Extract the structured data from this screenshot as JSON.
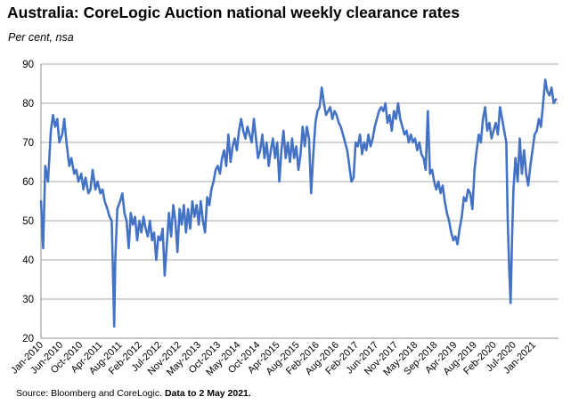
{
  "chart_data": {
    "type": "line",
    "title": "Australia: CoreLogic Auction national weekly clearance rates",
    "subtitle": "Per cent, nsa",
    "xlabel": "",
    "ylabel": "",
    "ylim": [
      20,
      90
    ],
    "yticks": [
      20,
      30,
      40,
      50,
      60,
      70,
      80,
      90
    ],
    "grid": true,
    "legend": "none",
    "line_color": "#4472C4",
    "x_tick_labels": [
      "Jan-2010",
      "Jun-2010",
      "Oct-2010",
      "Apr-2011",
      "Aug-2011",
      "Feb-2012",
      "Jul-2012",
      "Nov-2012",
      "May-2013",
      "Oct-2013",
      "May-2014",
      "Oct-2014",
      "Apr-2015",
      "Aug-2015",
      "Feb-2016",
      "Aug-2016",
      "Feb-2017",
      "Jun-2017",
      "Nov-2017",
      "May-2018",
      "Sep-2018",
      "Apr-2019",
      "Aug-2019",
      "Feb-2020",
      "Jul-2020",
      "Jan-2021"
    ],
    "series": [
      {
        "values": [
          [
            0.0,
            55
          ],
          [
            0.3,
            43
          ],
          [
            0.6,
            64
          ],
          [
            1.0,
            60
          ],
          [
            1.4,
            73
          ],
          [
            1.7,
            77
          ],
          [
            2.0,
            74
          ],
          [
            2.3,
            76
          ],
          [
            2.6,
            70
          ],
          [
            3.0,
            72
          ],
          [
            3.3,
            76
          ],
          [
            3.6,
            70
          ],
          [
            4.0,
            64
          ],
          [
            4.3,
            66
          ],
          [
            4.7,
            62
          ],
          [
            5.0,
            63
          ],
          [
            5.3,
            60
          ],
          [
            5.7,
            62
          ],
          [
            6.0,
            58
          ],
          [
            6.3,
            61
          ],
          [
            6.7,
            57
          ],
          [
            7.0,
            58
          ],
          [
            7.3,
            63
          ],
          [
            7.7,
            58
          ],
          [
            8.0,
            60
          ],
          [
            8.4,
            57
          ],
          [
            8.7,
            58
          ],
          [
            9.0,
            55
          ],
          [
            9.4,
            53
          ],
          [
            9.7,
            51
          ],
          [
            10.0,
            50
          ],
          [
            10.2,
            35
          ],
          [
            10.35,
            23
          ],
          [
            10.5,
            40
          ],
          [
            10.8,
            53
          ],
          [
            11.2,
            55
          ],
          [
            11.5,
            57
          ],
          [
            11.8,
            52
          ],
          [
            12.1,
            50
          ],
          [
            12.4,
            43
          ],
          [
            12.7,
            52
          ],
          [
            13.0,
            49
          ],
          [
            13.3,
            51
          ],
          [
            13.6,
            45
          ],
          [
            13.9,
            50
          ],
          [
            14.2,
            47
          ],
          [
            14.5,
            51
          ],
          [
            14.8,
            48
          ],
          [
            15.1,
            46
          ],
          [
            15.4,
            50
          ],
          [
            15.7,
            45
          ],
          [
            16.0,
            47
          ],
          [
            16.3,
            40
          ],
          [
            16.6,
            46
          ],
          [
            16.9,
            45
          ],
          [
            17.2,
            48
          ],
          [
            17.5,
            36
          ],
          [
            17.8,
            44
          ],
          [
            18.1,
            52
          ],
          [
            18.4,
            46
          ],
          [
            18.7,
            54
          ],
          [
            19.0,
            50
          ],
          [
            19.3,
            42
          ],
          [
            19.6,
            53
          ],
          [
            19.9,
            49
          ],
          [
            20.2,
            54
          ],
          [
            20.5,
            47
          ],
          [
            20.8,
            53
          ],
          [
            21.1,
            48
          ],
          [
            21.4,
            55
          ],
          [
            21.7,
            51
          ],
          [
            22.0,
            54
          ],
          [
            22.3,
            49
          ],
          [
            22.6,
            55
          ],
          [
            22.9,
            50
          ],
          [
            23.2,
            47
          ],
          [
            23.5,
            56
          ],
          [
            23.8,
            54
          ],
          [
            24.1,
            58
          ],
          [
            24.4,
            60
          ],
          [
            24.7,
            63
          ],
          [
            25.0,
            64
          ],
          [
            25.3,
            62
          ],
          [
            25.6,
            66
          ],
          [
            25.9,
            68
          ],
          [
            26.2,
            64
          ],
          [
            26.5,
            72
          ],
          [
            26.8,
            65
          ],
          [
            27.1,
            69
          ],
          [
            27.4,
            71
          ],
          [
            27.7,
            68
          ],
          [
            28.0,
            73
          ],
          [
            28.3,
            76
          ],
          [
            28.6,
            73
          ],
          [
            28.9,
            71
          ],
          [
            29.2,
            74
          ],
          [
            29.5,
            72
          ],
          [
            29.8,
            70
          ],
          [
            30.1,
            76
          ],
          [
            30.4,
            71
          ],
          [
            30.7,
            66
          ],
          [
            31.0,
            68
          ],
          [
            31.3,
            72
          ],
          [
            31.6,
            66
          ],
          [
            31.9,
            70
          ],
          [
            32.2,
            64
          ],
          [
            32.5,
            68
          ],
          [
            32.8,
            71
          ],
          [
            33.1,
            66
          ],
          [
            33.4,
            70
          ],
          [
            33.7,
            60
          ],
          [
            34.0,
            68
          ],
          [
            34.3,
            73
          ],
          [
            34.6,
            66
          ],
          [
            34.9,
            70
          ],
          [
            35.2,
            65
          ],
          [
            35.5,
            71
          ],
          [
            35.8,
            66
          ],
          [
            36.1,
            69
          ],
          [
            36.4,
            63
          ],
          [
            36.7,
            67
          ],
          [
            37.0,
            74
          ],
          [
            37.3,
            69
          ],
          [
            37.6,
            74
          ],
          [
            37.9,
            71
          ],
          [
            38.2,
            57
          ],
          [
            38.5,
            67
          ],
          [
            38.8,
            75
          ],
          [
            39.1,
            78
          ],
          [
            39.4,
            79
          ],
          [
            39.7,
            84
          ],
          [
            40.0,
            80
          ],
          [
            40.3,
            77
          ],
          [
            40.6,
            78
          ],
          [
            40.9,
            79
          ],
          [
            41.2,
            76
          ],
          [
            41.5,
            78
          ],
          [
            41.8,
            77
          ],
          [
            42.1,
            75
          ],
          [
            42.4,
            74
          ],
          [
            42.7,
            72
          ],
          [
            43.0,
            70
          ],
          [
            43.3,
            68
          ],
          [
            43.6,
            64
          ],
          [
            43.9,
            60
          ],
          [
            44.2,
            61
          ],
          [
            44.5,
            70
          ],
          [
            44.8,
            69
          ],
          [
            45.1,
            72
          ],
          [
            45.4,
            67
          ],
          [
            45.7,
            70
          ],
          [
            46.0,
            68
          ],
          [
            46.3,
            72
          ],
          [
            46.6,
            69
          ],
          [
            46.9,
            71
          ],
          [
            47.2,
            74
          ],
          [
            47.5,
            76
          ],
          [
            47.8,
            78
          ],
          [
            48.1,
            79
          ],
          [
            48.4,
            78
          ],
          [
            48.7,
            80
          ],
          [
            49.0,
            75
          ],
          [
            49.3,
            77
          ],
          [
            49.6,
            73
          ],
          [
            49.9,
            78
          ],
          [
            50.2,
            76
          ],
          [
            50.5,
            80
          ],
          [
            50.8,
            76
          ],
          [
            51.1,
            74
          ],
          [
            51.4,
            72
          ],
          [
            51.7,
            73
          ],
          [
            52.0,
            70
          ],
          [
            52.3,
            72
          ],
          [
            52.6,
            70
          ],
          [
            52.9,
            71
          ],
          [
            53.2,
            68
          ],
          [
            53.5,
            70
          ],
          [
            53.8,
            67
          ],
          [
            54.1,
            66
          ],
          [
            54.4,
            63
          ],
          [
            54.7,
            78
          ],
          [
            55.0,
            62
          ],
          [
            55.3,
            63
          ],
          [
            55.6,
            60
          ],
          [
            55.9,
            58
          ],
          [
            56.2,
            60
          ],
          [
            56.5,
            57
          ],
          [
            56.8,
            59
          ],
          [
            57.1,
            55
          ],
          [
            57.4,
            52
          ],
          [
            57.7,
            50
          ],
          [
            58.0,
            47
          ],
          [
            58.3,
            45
          ],
          [
            58.6,
            46
          ],
          [
            58.9,
            44
          ],
          [
            59.2,
            48
          ],
          [
            59.5,
            51
          ],
          [
            59.8,
            56
          ],
          [
            60.1,
            55
          ],
          [
            60.4,
            58
          ],
          [
            60.7,
            57
          ],
          [
            61.0,
            53
          ],
          [
            61.3,
            63
          ],
          [
            61.6,
            68
          ],
          [
            61.9,
            72
          ],
          [
            62.2,
            70
          ],
          [
            62.5,
            76
          ],
          [
            62.8,
            79
          ],
          [
            63.1,
            73
          ],
          [
            63.4,
            75
          ],
          [
            63.7,
            71
          ],
          [
            64.0,
            73
          ],
          [
            64.3,
            75
          ],
          [
            64.6,
            72
          ],
          [
            64.9,
            79
          ],
          [
            65.2,
            76
          ],
          [
            65.5,
            73
          ],
          [
            65.8,
            70
          ],
          [
            66.0,
            50
          ],
          [
            66.2,
            38
          ],
          [
            66.4,
            29
          ],
          [
            66.6,
            45
          ],
          [
            66.8,
            58
          ],
          [
            67.1,
            66
          ],
          [
            67.4,
            60
          ],
          [
            67.7,
            71
          ],
          [
            68.0,
            62
          ],
          [
            68.3,
            68
          ],
          [
            68.6,
            62
          ],
          [
            68.9,
            59
          ],
          [
            69.2,
            64
          ],
          [
            69.5,
            68
          ],
          [
            69.8,
            72
          ],
          [
            70.1,
            73
          ],
          [
            70.4,
            76
          ],
          [
            70.7,
            74
          ],
          [
            71.0,
            80
          ],
          [
            71.3,
            86
          ],
          [
            71.6,
            83
          ],
          [
            71.9,
            82
          ],
          [
            72.2,
            84
          ],
          [
            72.5,
            80
          ],
          [
            72.8,
            81
          ]
        ]
      }
    ],
    "source_text": "Source: Bloomberg and CoreLogic.",
    "source_note": "Data to 2 May 2021."
  }
}
